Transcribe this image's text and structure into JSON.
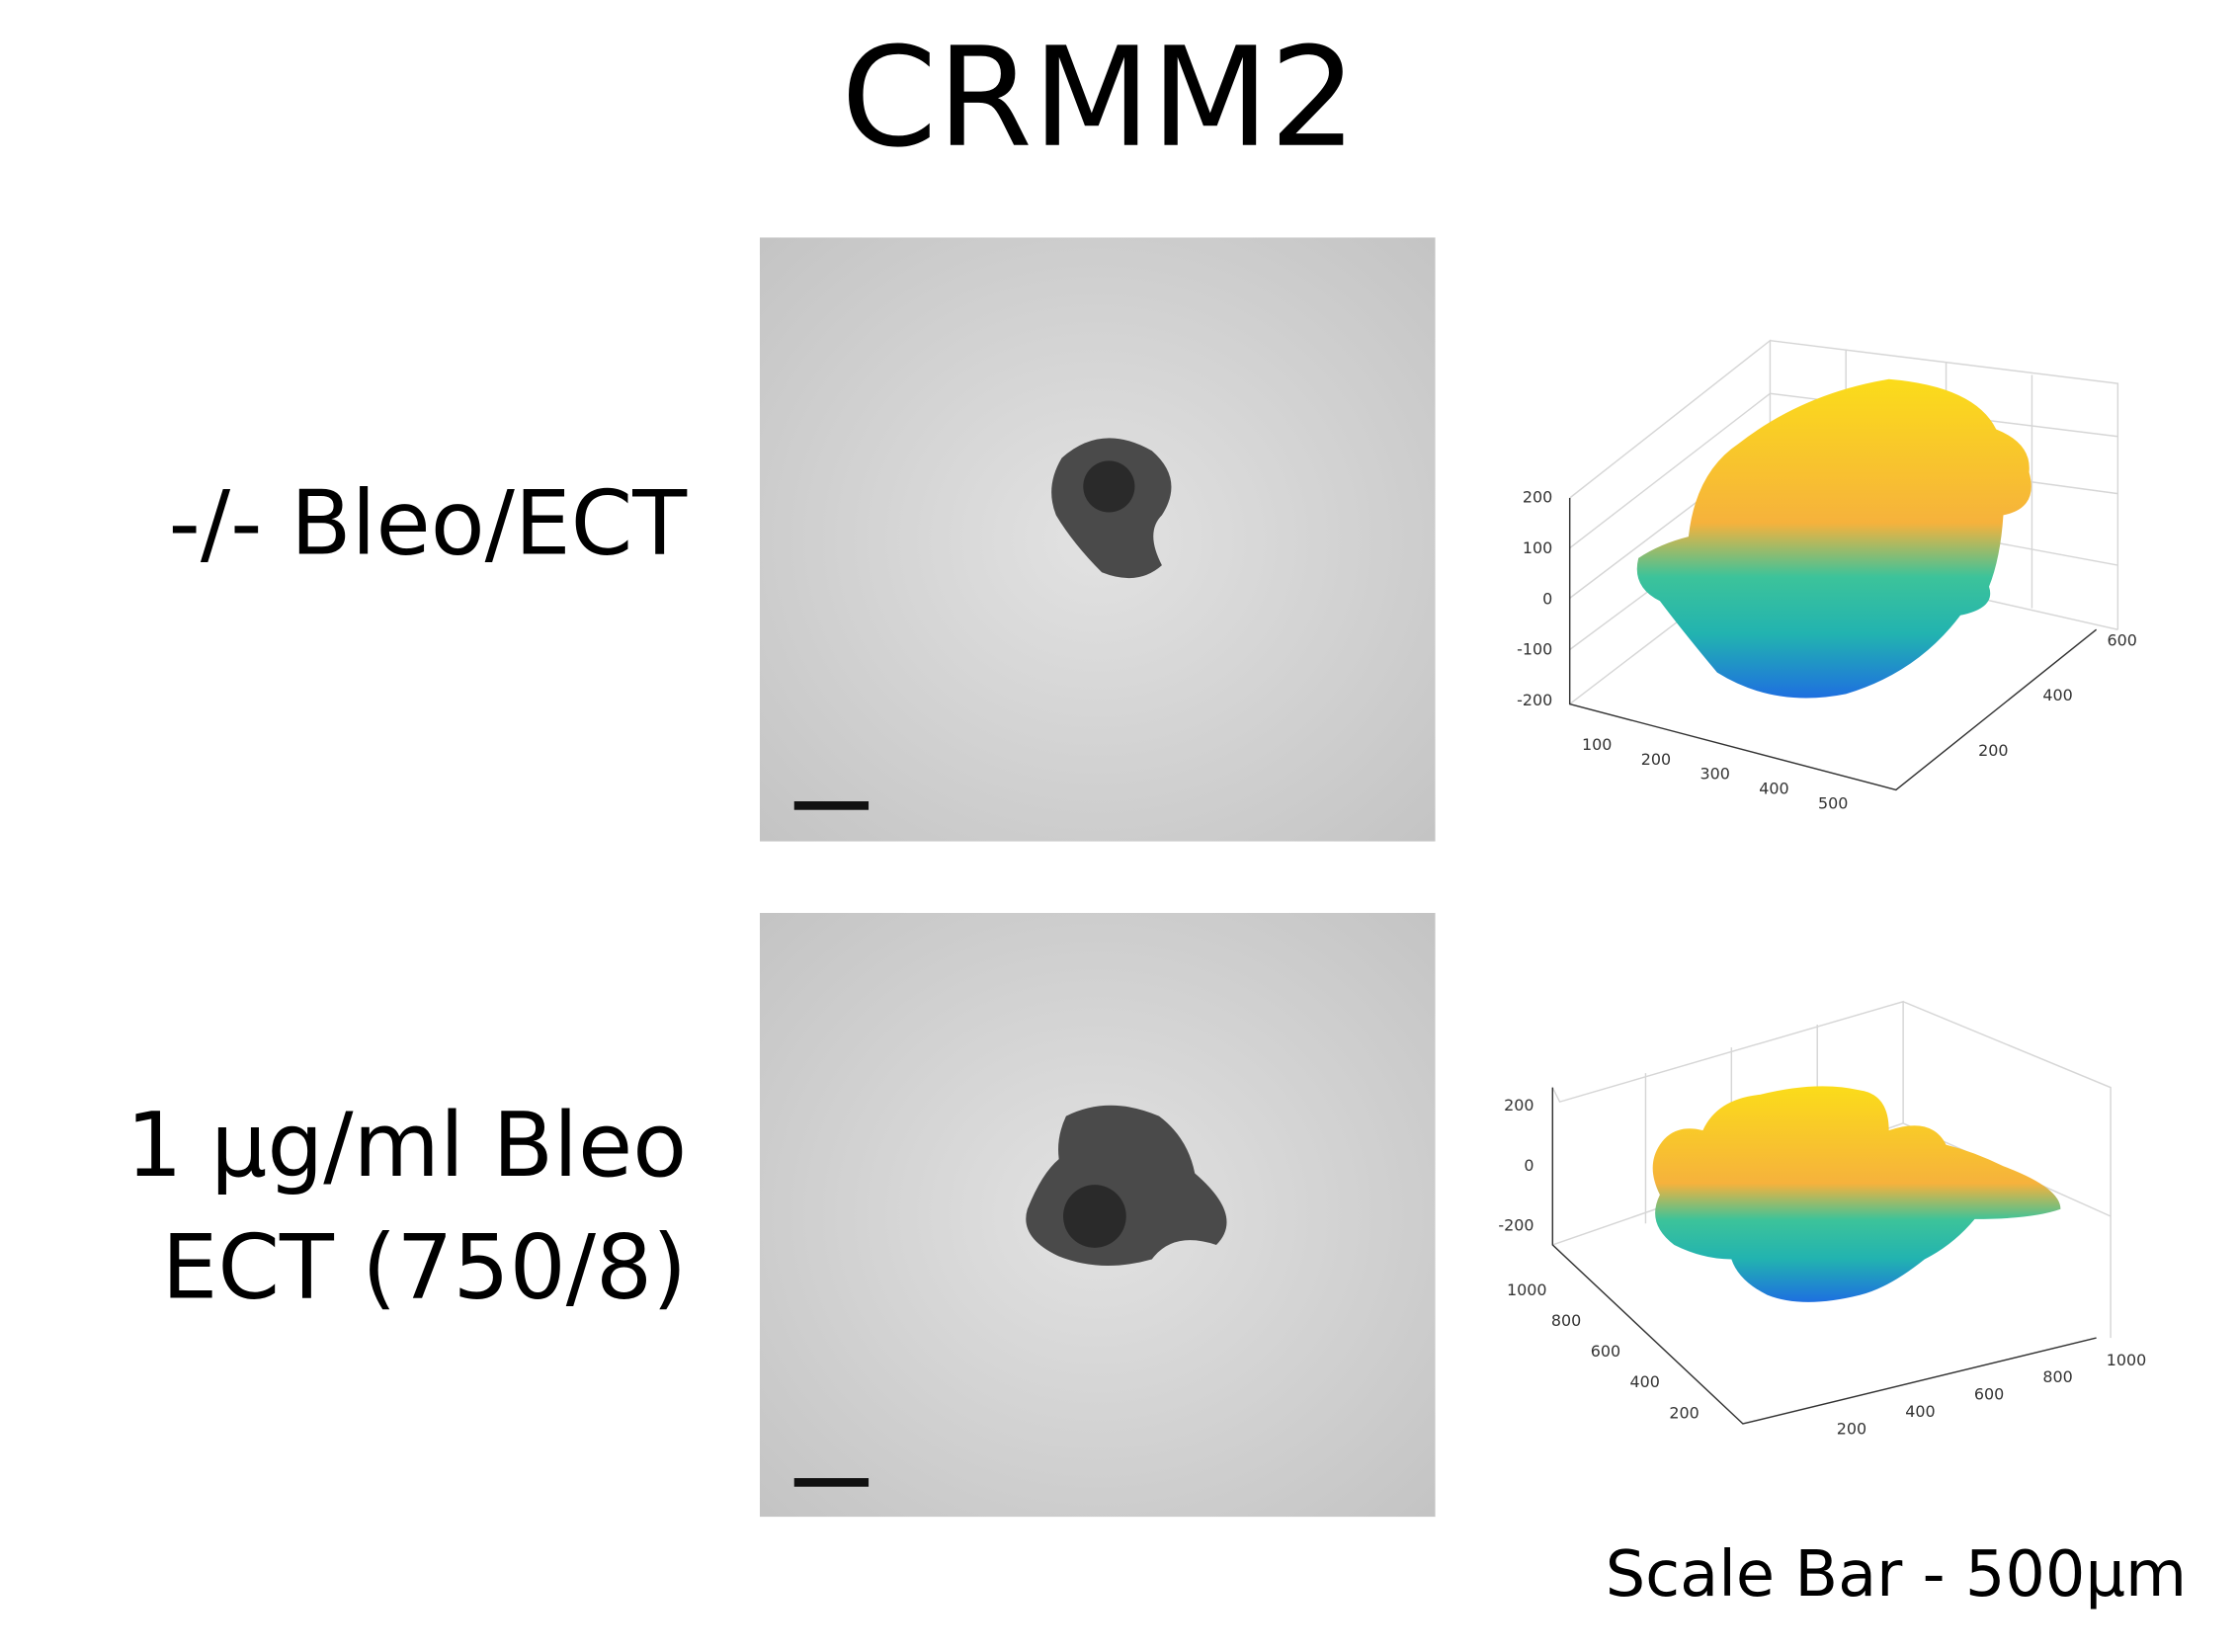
{
  "title": "CRMM2",
  "rows": [
    {
      "label_lines": [
        "-/- Bleo/ECT"
      ],
      "plot": {
        "z_ticks": [
          200,
          100,
          0,
          -100,
          -200
        ],
        "x_ticks": [
          100,
          200,
          300,
          400,
          500
        ],
        "y_ticks": [
          200,
          400,
          600
        ]
      }
    },
    {
      "label_lines": [
        "1 μg/ml Bleo",
        "ECT (750/8)"
      ],
      "plot": {
        "z_ticks": [
          200,
          0,
          -200
        ],
        "x_ticks": [
          200,
          400,
          600,
          800,
          1000
        ],
        "y_ticks": [
          200,
          400,
          600,
          800,
          1000
        ]
      }
    }
  ],
  "scale_bar_note": "Scale Bar - 500μm"
}
